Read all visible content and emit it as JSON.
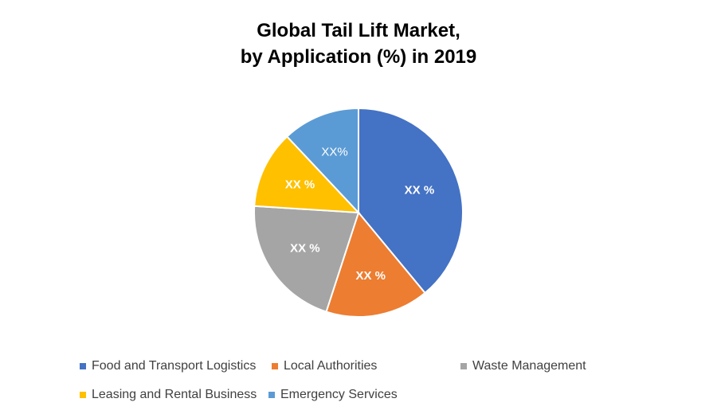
{
  "chart_data": {
    "type": "pie",
    "title_lines": [
      "Global Tail Lift Market,",
      "by Application (%) in 2019"
    ],
    "slices": [
      {
        "name": "Food and Transport Logistics",
        "value": 39,
        "label": "XX %",
        "color": "#4472C4"
      },
      {
        "name": "Local Authorities",
        "value": 16,
        "label": "XX %",
        "color": "#ED7D31"
      },
      {
        "name": "Waste Management",
        "value": 21,
        "label": "XX %",
        "color": "#A5A5A5"
      },
      {
        "name": "Leasing and Rental Business",
        "value": 12,
        "label": "XX %",
        "color": "#FFC000"
      },
      {
        "name": "Emergency Services",
        "value": 12,
        "label": "XX%",
        "color": "#5B9BD5"
      }
    ],
    "legend_position": "bottom"
  }
}
